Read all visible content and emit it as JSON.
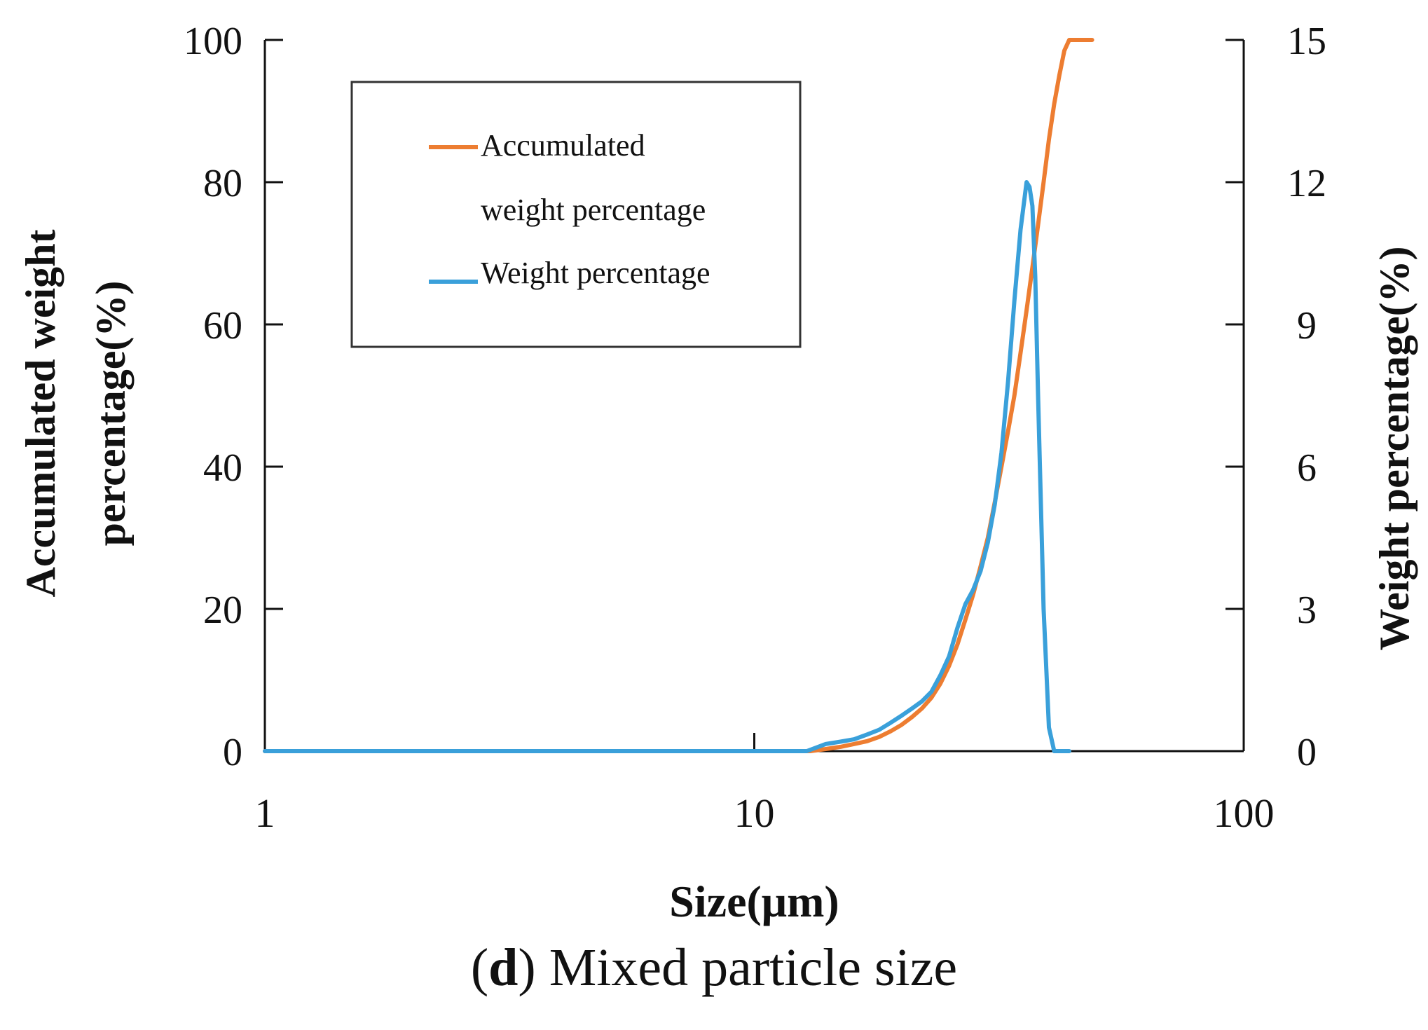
{
  "chart_data": {
    "type": "line",
    "xlabel": "Size(μm)",
    "ylabel_left": "Accumulated weight percentage(%)",
    "ylabel_left_lines": [
      "Accumulated weight",
      "percentage(%)"
    ],
    "ylabel_right": "Weight percentage(%)",
    "x_scale": "log",
    "xlim": [
      1,
      100
    ],
    "x_ticks": [
      "1",
      "10",
      "100"
    ],
    "ylim_left": [
      0,
      100
    ],
    "y_ticks_left": [
      "0",
      "20",
      "40",
      "60",
      "80",
      "100"
    ],
    "ylim_right": [
      0,
      15
    ],
    "y_ticks_right": [
      "0",
      "3",
      "6",
      "9",
      "12",
      "15"
    ],
    "grid": false,
    "legend_position": "top-left",
    "colors": {
      "accumulated": "#ED7D31",
      "weight": "#3AA0DA",
      "axis": "#111111"
    },
    "series": [
      {
        "name": "Accumulated weight percentage",
        "axis": "left",
        "x": [
          1,
          5,
          10,
          13,
          14,
          15,
          16,
          17,
          18,
          19,
          20,
          21,
          22,
          23,
          24,
          25,
          26,
          27,
          28,
          29,
          30,
          31,
          32,
          33,
          34,
          35,
          36,
          37,
          38,
          39,
          40,
          41,
          42,
          43,
          44,
          46,
          49
        ],
        "y": [
          0,
          0,
          0,
          0,
          0.3,
          0.6,
          1.0,
          1.4,
          2.0,
          2.8,
          3.7,
          4.8,
          6.0,
          7.5,
          9.5,
          12,
          15,
          18.5,
          22,
          26,
          30,
          35,
          40,
          45,
          50,
          56,
          62,
          68,
          74,
          80,
          86,
          91,
          95,
          98.5,
          100,
          100,
          100
        ]
      },
      {
        "name": "Weight percentage",
        "axis": "right",
        "x": [
          1,
          5,
          10,
          12.8,
          14,
          15,
          16,
          17,
          18,
          19,
          20,
          21,
          22,
          23,
          24,
          25,
          26,
          27,
          28,
          29,
          30,
          31,
          32,
          33,
          34,
          35,
          36,
          36.5,
          37,
          37.5,
          38,
          39,
          40,
          41,
          42,
          44
        ],
        "y": [
          0,
          0,
          0,
          0,
          0.15,
          0.2,
          0.25,
          0.35,
          0.45,
          0.6,
          0.75,
          0.9,
          1.05,
          1.25,
          1.6,
          2.0,
          2.6,
          3.1,
          3.4,
          3.8,
          4.4,
          5.2,
          6.3,
          7.8,
          9.5,
          11.0,
          12.0,
          11.9,
          11.5,
          10.0,
          7.5,
          3.0,
          0.5,
          0,
          0,
          0
        ]
      }
    ],
    "caption_label": "d",
    "caption_text": ") Mixed particle size",
    "caption_open": "("
  }
}
